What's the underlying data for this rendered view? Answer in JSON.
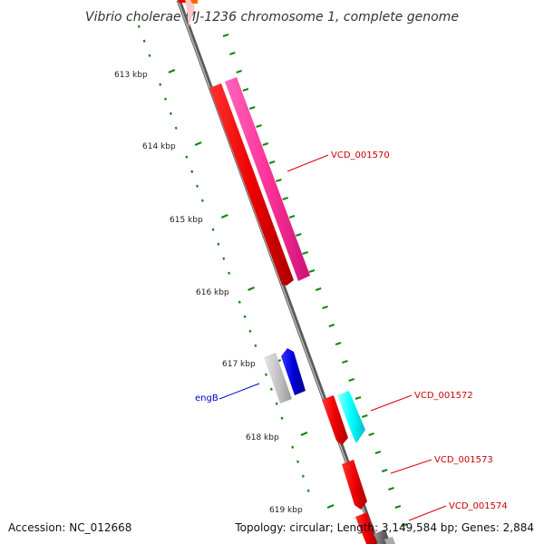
{
  "title": "Vibrio cholerae MJ-1236 chromosome 1, complete genome",
  "footer": {
    "accession": "Accession: NC_012668",
    "summary": "Topology: circular; Length: 3,149,584 bp; Genes: 2,884"
  },
  "ticks": [
    "613 kbp",
    "614 kbp",
    "615 kbp",
    "616 kbp",
    "617 kbp",
    "618 kbp",
    "619 kbp"
  ],
  "gene_labels": [
    {
      "text": "VCD_001570",
      "color": "#cc0000"
    },
    {
      "text": "engB",
      "color": "#0000cc"
    },
    {
      "text": "VCD_001572",
      "color": "#cc0000"
    },
    {
      "text": "VCD_001573",
      "color": "#cc0000"
    },
    {
      "text": "VCD_001574",
      "color": "#cc0000"
    }
  ],
  "colors": {
    "backbone": "#888888",
    "cds": "#ee0000",
    "gene_magenta": "#ff3399",
    "gene_blue": "#0000dd",
    "gene_cyan": "#00ffff",
    "gene_gray": "#bbbbbb",
    "tick": "#118811"
  }
}
